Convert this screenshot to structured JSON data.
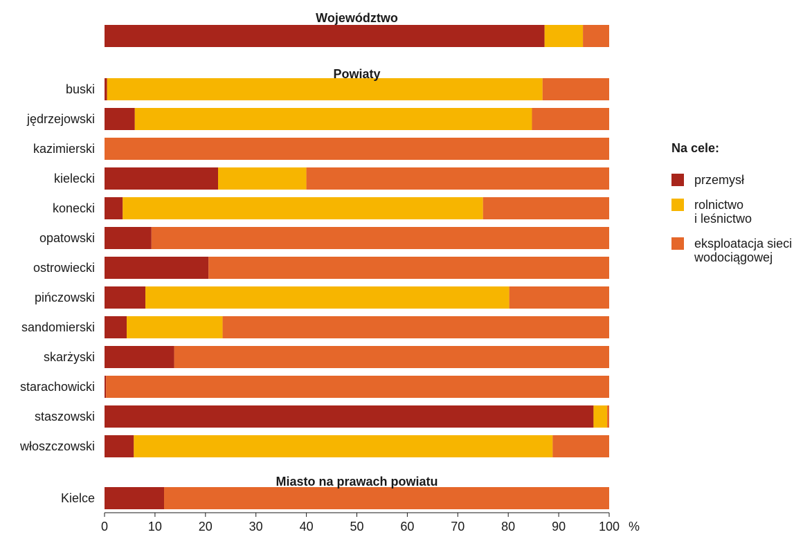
{
  "chart_data": {
    "type": "bar",
    "orientation": "horizontal",
    "stacked": true,
    "unit": "%",
    "xlim": [
      0,
      100
    ],
    "xticks": [
      0,
      10,
      20,
      30,
      40,
      50,
      60,
      70,
      80,
      90,
      100
    ],
    "grid": false,
    "legend_position": "right",
    "colors": {
      "przemysl": "#a8251b",
      "rolnictwo": "#f7b500",
      "eksploatacja": "#e5672a"
    },
    "legend": {
      "title": "Na cele:",
      "items": [
        {
          "key": "przemysl",
          "lines": [
            "przemysł"
          ]
        },
        {
          "key": "rolnictwo",
          "lines": [
            "rolnictwo",
            "i leśnictwo"
          ]
        },
        {
          "key": "eksploatacja",
          "lines": [
            "eksploatacja sieci",
            "wodociągowej"
          ]
        }
      ]
    },
    "groups": [
      {
        "title": "Województwo",
        "rows": [
          {
            "label": "",
            "values": {
              "przemysl": 87.2,
              "rolnictwo": 7.6,
              "eksploatacja": 5.2
            }
          }
        ]
      },
      {
        "title": "Powiaty",
        "rows": [
          {
            "label": "buski",
            "values": {
              "przemysl": 0.5,
              "rolnictwo": 86.3,
              "eksploatacja": 13.2
            }
          },
          {
            "label": "jędrzejowski",
            "values": {
              "przemysl": 6.0,
              "rolnictwo": 78.7,
              "eksploatacja": 15.3
            }
          },
          {
            "label": "kazimierski",
            "values": {
              "przemysl": 0,
              "rolnictwo": 0,
              "eksploatacja": 100
            }
          },
          {
            "label": "kielecki",
            "values": {
              "przemysl": 22.5,
              "rolnictwo": 17.5,
              "eksploatacja": 60.0
            }
          },
          {
            "label": "konecki",
            "values": {
              "przemysl": 3.6,
              "rolnictwo": 71.4,
              "eksploatacja": 25.0
            }
          },
          {
            "label": "opatowski",
            "values": {
              "przemysl": 9.3,
              "rolnictwo": 0,
              "eksploatacja": 90.7
            }
          },
          {
            "label": "ostrowiecki",
            "values": {
              "przemysl": 20.6,
              "rolnictwo": 0,
              "eksploatacja": 79.4
            }
          },
          {
            "label": "pińczowski",
            "values": {
              "przemysl": 8.1,
              "rolnictwo": 72.1,
              "eksploatacja": 19.8
            }
          },
          {
            "label": "sandomierski",
            "values": {
              "przemysl": 4.4,
              "rolnictwo": 19.0,
              "eksploatacja": 76.6
            }
          },
          {
            "label": "skarżyski",
            "values": {
              "przemysl": 13.8,
              "rolnictwo": 0,
              "eksploatacja": 86.2
            }
          },
          {
            "label": "starachowicki",
            "values": {
              "przemysl": 0.3,
              "rolnictwo": 0,
              "eksploatacja": 99.7
            }
          },
          {
            "label": "staszowski",
            "values": {
              "przemysl": 96.9,
              "rolnictwo": 2.7,
              "eksploatacja": 0.4
            }
          },
          {
            "label": "włoszczowski",
            "values": {
              "przemysl": 5.8,
              "rolnictwo": 83.0,
              "eksploatacja": 11.2
            }
          }
        ]
      },
      {
        "title": "Miasto na prawach powiatu",
        "rows": [
          {
            "label": "Kielce",
            "values": {
              "przemysl": 11.8,
              "rolnictwo": 0,
              "eksploatacja": 88.2
            }
          }
        ]
      }
    ]
  }
}
